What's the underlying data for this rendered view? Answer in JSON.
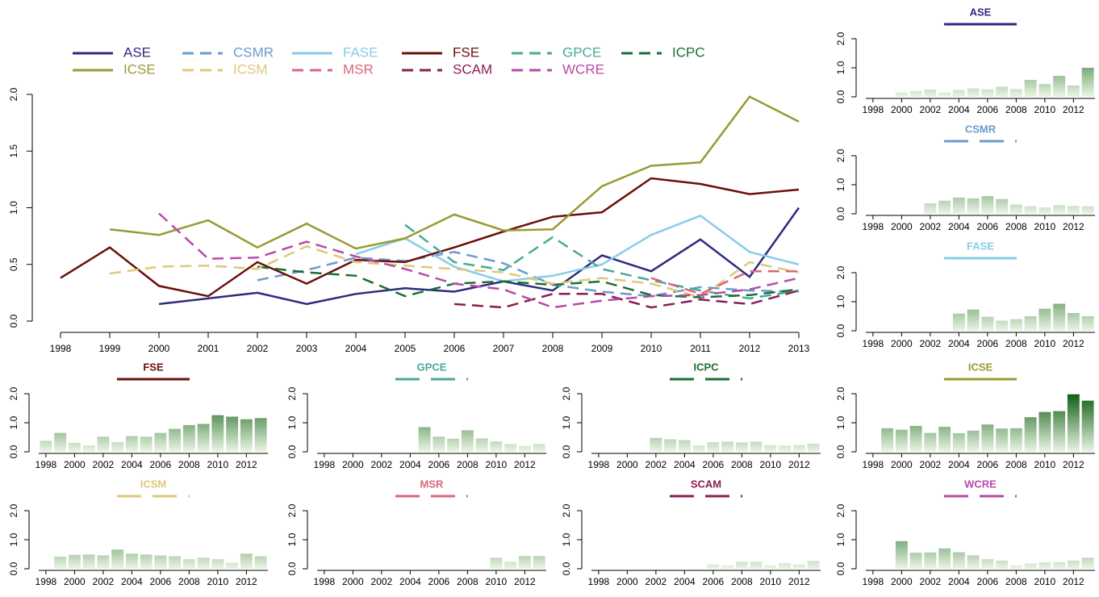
{
  "chart_data": {
    "type": "line",
    "categories": [
      "1998",
      "1999",
      "2000",
      "2001",
      "2002",
      "2003",
      "2004",
      "2005",
      "2006",
      "2007",
      "2008",
      "2009",
      "2010",
      "2011",
      "2012",
      "2013"
    ],
    "ylim": [
      0,
      2
    ],
    "yticks": [
      {
        "value": 0,
        "label": "0.0"
      },
      {
        "value": 0.5,
        "label": "0.5"
      },
      {
        "value": 1,
        "label": "1.0"
      },
      {
        "value": 1.5,
        "label": "1.5"
      },
      {
        "value": 2,
        "label": "2.0"
      }
    ],
    "small_ylim": [
      0,
      2
    ],
    "small_yticks": [
      {
        "value": 0,
        "label": "0.0"
      },
      {
        "value": 1,
        "label": "1.0"
      },
      {
        "value": 2,
        "label": "2.0"
      }
    ],
    "bar_colors": [
      "#eaf5e4",
      "#0f5e12"
    ],
    "series": [
      {
        "name": "ASE",
        "color": "#2e2a7f",
        "dash": false,
        "values": [
          null,
          null,
          0.15,
          0.2,
          0.25,
          0.15,
          0.24,
          0.29,
          0.26,
          0.35,
          0.27,
          0.58,
          0.44,
          0.72,
          0.39,
          1.0
        ]
      },
      {
        "name": "CSMR",
        "color": "#6a9bcf",
        "dash": true,
        "values": [
          null,
          null,
          null,
          null,
          0.36,
          0.45,
          0.56,
          0.53,
          0.61,
          0.51,
          0.32,
          0.26,
          0.22,
          0.3,
          0.27,
          0.26
        ]
      },
      {
        "name": "FASE",
        "color": "#87cde8",
        "dash": false,
        "values": [
          null,
          null,
          null,
          null,
          null,
          null,
          0.59,
          0.73,
          0.48,
          0.35,
          0.4,
          0.5,
          0.76,
          0.93,
          0.61,
          0.5
        ]
      },
      {
        "name": "FSE",
        "color": "#6b0f0a",
        "dash": false,
        "values": [
          0.38,
          0.65,
          0.31,
          0.22,
          0.52,
          0.33,
          0.54,
          0.52,
          0.65,
          0.79,
          0.92,
          0.96,
          1.26,
          1.21,
          1.12,
          1.16
        ]
      },
      {
        "name": "GPCE",
        "color": "#48a99a",
        "dash": true,
        "values": [
          null,
          null,
          null,
          null,
          null,
          null,
          null,
          0.85,
          0.52,
          0.45,
          0.74,
          0.46,
          0.36,
          0.27,
          0.2,
          0.27
        ]
      },
      {
        "name": "ICPC",
        "color": "#1a6e32",
        "dash": true,
        "values": [
          null,
          null,
          null,
          null,
          0.48,
          0.43,
          0.4,
          0.22,
          0.33,
          0.35,
          0.32,
          0.35,
          0.23,
          0.21,
          0.23,
          0.28
        ]
      },
      {
        "name": "ICSE",
        "color": "#999a35",
        "dash": false,
        "values": [
          null,
          0.81,
          0.76,
          0.89,
          0.65,
          0.86,
          0.64,
          0.73,
          0.94,
          0.8,
          0.81,
          1.19,
          1.37,
          1.4,
          1.98,
          1.76
        ]
      },
      {
        "name": "ICSM",
        "color": "#e0c77a",
        "dash": true,
        "values": [
          null,
          0.42,
          0.48,
          0.49,
          0.46,
          0.66,
          0.52,
          0.49,
          0.46,
          0.43,
          0.33,
          0.38,
          0.33,
          0.21,
          0.52,
          0.43
        ]
      },
      {
        "name": "MSR",
        "color": "#d9677a",
        "dash": true,
        "values": [
          null,
          null,
          null,
          null,
          null,
          null,
          null,
          null,
          null,
          null,
          null,
          null,
          0.38,
          0.24,
          0.44,
          0.44
        ]
      },
      {
        "name": "SCAM",
        "color": "#8a1e55",
        "dash": true,
        "values": [
          null,
          null,
          null,
          null,
          null,
          null,
          null,
          null,
          0.15,
          0.12,
          0.24,
          0.24,
          0.12,
          0.19,
          0.15,
          0.27
        ]
      },
      {
        "name": "WCRE",
        "color": "#b84aa6",
        "dash": true,
        "values": [
          null,
          null,
          0.95,
          0.55,
          0.56,
          0.7,
          0.57,
          0.46,
          0.33,
          0.28,
          0.12,
          0.18,
          0.22,
          0.23,
          0.28,
          0.38
        ]
      }
    ]
  }
}
